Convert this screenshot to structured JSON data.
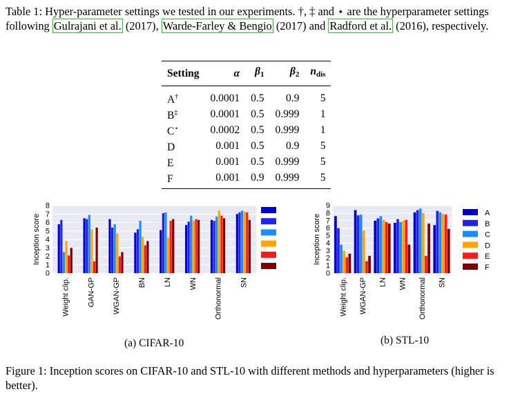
{
  "table": {
    "caption_parts": {
      "label": "Table 1:",
      "text1": " Hyper-parameter settings we tested in our experiments. †, ‡ and ⋆ are the hyperparameter settings following ",
      "cite1": "Gulrajani et al.",
      "year1": "(2017)",
      "sep1": ", ",
      "cite2": "Warde-Farley & Bengio",
      "year2": "(2017)",
      "sep2": " and ",
      "cite3": "Radford et al.",
      "year3": "(2016)",
      "text2": ", respectively."
    },
    "headers": [
      "Setting",
      "α",
      "β",
      "β",
      "n"
    ],
    "header_subs": [
      "",
      "",
      "1",
      "2",
      "dis"
    ],
    "rows": [
      {
        "setting": "A",
        "mark": "†",
        "alpha": "0.0001",
        "beta1": "0.5",
        "beta2": "0.9",
        "ndis": "5"
      },
      {
        "setting": "B",
        "mark": "‡",
        "alpha": "0.0001",
        "beta1": "0.5",
        "beta2": "0.999",
        "ndis": "1"
      },
      {
        "setting": "C",
        "mark": "⋆",
        "alpha": "0.0002",
        "beta1": "0.5",
        "beta2": "0.999",
        "ndis": "1"
      },
      {
        "setting": "D",
        "mark": "",
        "alpha": "0.001",
        "beta1": "0.5",
        "beta2": "0.9",
        "ndis": "5"
      },
      {
        "setting": "E",
        "mark": "",
        "alpha": "0.001",
        "beta1": "0.5",
        "beta2": "0.999",
        "ndis": "5"
      },
      {
        "setting": "F",
        "mark": "",
        "alpha": "0.001",
        "beta1": "0.9",
        "beta2": "0.999",
        "ndis": "5"
      }
    ]
  },
  "chart_data": [
    {
      "type": "bar",
      "title": "",
      "ylabel": "Inception score",
      "ylim": [
        0,
        8
      ],
      "yticks": [
        "0",
        "1",
        "2",
        "3",
        "4",
        "5",
        "6",
        "7",
        "8"
      ],
      "grid": true,
      "legend_placement": "right",
      "categories": [
        "Weight clip.",
        "GAN-GP",
        "WGAN-GP",
        "BN",
        "LN",
        "WN",
        "Orthonormal",
        "SN"
      ],
      "series": [
        {
          "name": "A",
          "color": "#0000cc",
          "values": [
            5.8,
            6.5,
            6.4,
            4.8,
            5.1,
            5.7,
            6.3,
            7.0
          ]
        },
        {
          "name": "B",
          "color": "#2222ee",
          "values": [
            6.3,
            6.4,
            5.4,
            5.2,
            7.1,
            6.1,
            6.2,
            7.2
          ]
        },
        {
          "name": "C",
          "color": "#1e8cff",
          "values": [
            2.5,
            6.9,
            5.8,
            6.2,
            7.2,
            6.8,
            6.7,
            7.4
          ]
        },
        {
          "name": "D",
          "color": "#ffa500",
          "values": [
            3.8,
            5.2,
            4.7,
            4.3,
            4.2,
            6.2,
            7.4,
            7.3
          ]
        },
        {
          "name": "E",
          "color": "#ff1a1a",
          "values": [
            2.1,
            1.4,
            2.0,
            3.3,
            6.2,
            6.4,
            6.8,
            7.2
          ]
        },
        {
          "name": "F",
          "color": "#7a0000",
          "values": [
            3.0,
            5.4,
            2.5,
            3.8,
            6.4,
            6.3,
            6.5,
            6.3
          ]
        }
      ],
      "caption": "(a) CIFAR-10"
    },
    {
      "type": "bar",
      "title": "",
      "ylabel": "Inception score",
      "ylim": [
        0,
        9
      ],
      "yticks": [
        "0",
        "1",
        "2",
        "3",
        "4",
        "5",
        "6",
        "7",
        "8",
        "9"
      ],
      "grid": true,
      "legend_placement": "right",
      "categories": [
        "Weight clip.",
        "WGAN-GP",
        "LN",
        "WN",
        "Orthonormal",
        "SN"
      ],
      "series": [
        {
          "name": "A",
          "color": "#0000cc",
          "values": [
            7.6,
            8.4,
            7.0,
            6.7,
            8.1,
            6.4
          ]
        },
        {
          "name": "B",
          "color": "#2222ee",
          "values": [
            6.0,
            7.7,
            7.3,
            7.2,
            8.4,
            8.3
          ]
        },
        {
          "name": "C",
          "color": "#1e8cff",
          "values": [
            3.8,
            7.8,
            7.6,
            6.8,
            8.6,
            8.1
          ]
        },
        {
          "name": "D",
          "color": "#ffa500",
          "values": [
            3.0,
            5.7,
            7.1,
            7.0,
            8.0,
            7.9
          ]
        },
        {
          "name": "E",
          "color": "#ff1a1a",
          "values": [
            2.1,
            1.6,
            6.8,
            7.1,
            2.3,
            7.8
          ]
        },
        {
          "name": "F",
          "color": "#7a0000",
          "values": [
            2.6,
            2.3,
            6.6,
            3.8,
            6.6,
            5.9
          ]
        }
      ],
      "caption": "(b) STL-10"
    }
  ],
  "figure": {
    "caption_label": "Figure 1:",
    "caption_text": " Inception scores on CIFAR-10 and STL-10 with different methods and hyperparameters (higher is better)."
  }
}
